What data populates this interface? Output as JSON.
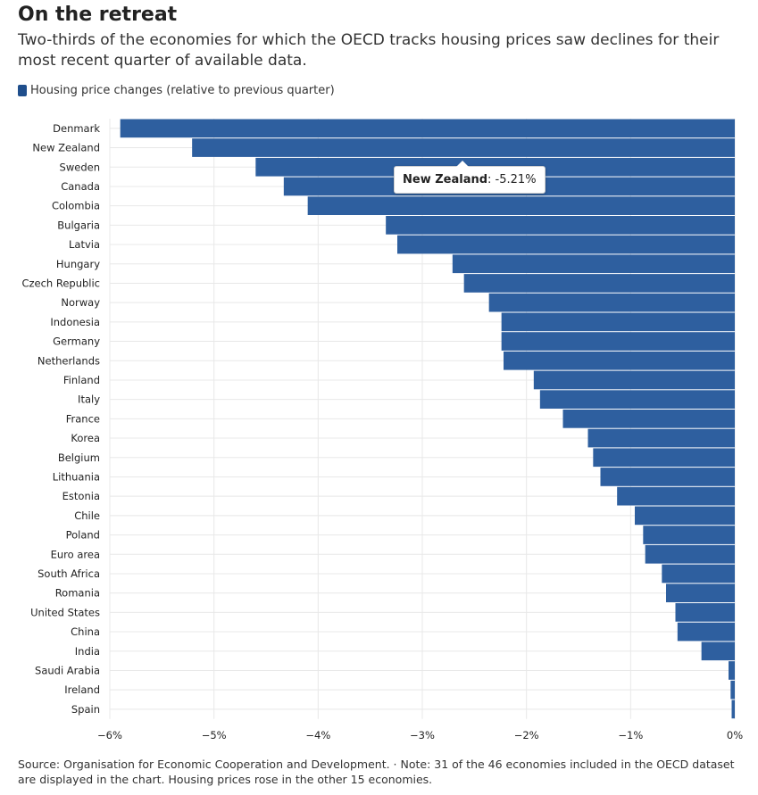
{
  "title": "On the retreat",
  "subtitle": "Two-thirds of the economies for which the OECD tracks housing prices saw declines for their most recent quarter of available data.",
  "footer": "Source: Organisation for Economic Cooperation and Development. · Note: 31 of the 46 economies included in the OECD dataset are displayed in the chart. Housing prices rose in the other 15 economies.",
  "colors": {
    "bar": "#2e5f9f",
    "swatch": "#1f4e8c",
    "grid": "#e8e8e8"
  },
  "tooltip": {
    "country": "New Zealand",
    "value_text": ": -5.21%"
  },
  "chart_data": {
    "type": "bar",
    "orientation": "horizontal",
    "series": [
      {
        "name": "Housing price changes (relative to previous quarter)"
      }
    ],
    "categories": [
      "Denmark",
      "New Zealand",
      "Sweden",
      "Canada",
      "Colombia",
      "Bulgaria",
      "Latvia",
      "Hungary",
      "Czech Republic",
      "Norway",
      "Indonesia",
      "Germany",
      "Netherlands",
      "Finland",
      "Italy",
      "France",
      "Korea",
      "Belgium",
      "Lithuania",
      "Estonia",
      "Chile",
      "Poland",
      "Euro area",
      "South Africa",
      "Romania",
      "United States",
      "China",
      "India",
      "Saudi Arabia",
      "Ireland",
      "Spain"
    ],
    "values": [
      -5.9,
      -5.21,
      -4.6,
      -4.33,
      -4.1,
      -3.35,
      -3.24,
      -2.71,
      -2.6,
      -2.36,
      -2.24,
      -2.24,
      -2.22,
      -1.93,
      -1.87,
      -1.65,
      -1.41,
      -1.36,
      -1.29,
      -1.13,
      -0.96,
      -0.88,
      -0.86,
      -0.7,
      -0.66,
      -0.57,
      -0.55,
      -0.32,
      -0.06,
      -0.04,
      -0.03
    ],
    "xlim": [
      -6,
      0
    ],
    "xticks": [
      -6,
      -5,
      -4,
      -3,
      -2,
      -1,
      0
    ],
    "xtick_labels": [
      "−6%",
      "−5%",
      "−4%",
      "−3%",
      "−2%",
      "−1%",
      "0%"
    ],
    "grid": true,
    "legend_position": "top-left"
  }
}
